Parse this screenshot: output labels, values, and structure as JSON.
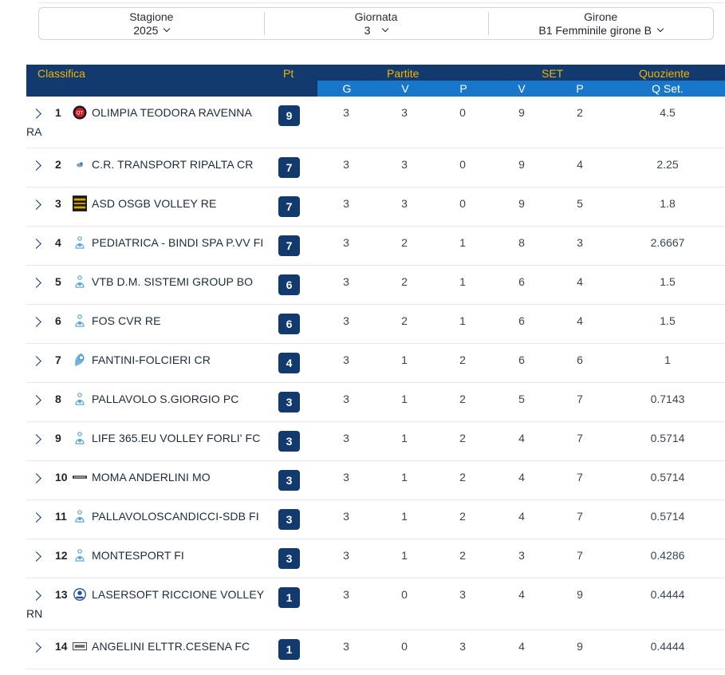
{
  "filters": {
    "season": {
      "label": "Stagione",
      "value": "2025"
    },
    "matchday": {
      "label": "Giornata",
      "value": "3"
    },
    "group": {
      "label": "Girone",
      "value": "B1 Femminile girone B"
    }
  },
  "table": {
    "headers": {
      "classifica": "Classifica",
      "pt": "Pt",
      "partite": "Partite",
      "set": "SET",
      "quoziente": "Quoziente"
    },
    "subheaders": {
      "g": "G",
      "pv": "V",
      "pp": "P",
      "sv": "V",
      "sp": "P",
      "qset": "Q Set."
    },
    "rows": [
      {
        "pos": "1",
        "team": "OLIMPIA TEODORA RAVENNA",
        "team_cont": "RA",
        "pt": "9",
        "g": "3",
        "v": "3",
        "p": "0",
        "sv": "9",
        "sp": "2",
        "q": "4.5",
        "logo": "olimpia-teodora-logo"
      },
      {
        "pos": "2",
        "team": "C.R. TRANSPORT RIPALTA CR",
        "pt": "7",
        "g": "3",
        "v": "3",
        "p": "0",
        "sv": "9",
        "sp": "4",
        "q": "2.25",
        "logo": "ripalta-logo"
      },
      {
        "pos": "3",
        "team": "ASD OSGB VOLLEY RE",
        "pt": "7",
        "g": "3",
        "v": "3",
        "p": "0",
        "sv": "9",
        "sp": "5",
        "q": "1.8",
        "logo": "osgb-logo"
      },
      {
        "pos": "4",
        "team": "PEDIATRICA - BINDI SPA P.VV FI",
        "pt": "7",
        "g": "3",
        "v": "2",
        "p": "1",
        "sv": "8",
        "sp": "3",
        "q": "2.6667",
        "logo": "default-team-logo"
      },
      {
        "pos": "5",
        "team": "VTB D.M. SISTEMI GROUP BO",
        "pt": "6",
        "g": "3",
        "v": "2",
        "p": "1",
        "sv": "6",
        "sp": "4",
        "q": "1.5",
        "logo": "default-team-logo"
      },
      {
        "pos": "6",
        "team": "FOS CVR RE",
        "pt": "6",
        "g": "3",
        "v": "2",
        "p": "1",
        "sv": "6",
        "sp": "4",
        "q": "1.5",
        "logo": "default-team-logo"
      },
      {
        "pos": "7",
        "team": "FANTINI-FOLCIERI CR",
        "pt": "4",
        "g": "3",
        "v": "1",
        "p": "2",
        "sv": "6",
        "sp": "6",
        "q": "1",
        "logo": "fantini-folcieri-logo"
      },
      {
        "pos": "8",
        "team": "PALLAVOLO S.GIORGIO PC",
        "pt": "3",
        "g": "3",
        "v": "1",
        "p": "2",
        "sv": "5",
        "sp": "7",
        "q": "0.7143",
        "logo": "default-team-logo"
      },
      {
        "pos": "9",
        "team": "LIFE 365.EU VOLLEY FORLI' FC",
        "pt": "3",
        "g": "3",
        "v": "1",
        "p": "2",
        "sv": "4",
        "sp": "7",
        "q": "0.5714",
        "logo": "default-team-logo"
      },
      {
        "pos": "10",
        "team": "MOMA ANDERLINI MO",
        "pt": "3",
        "g": "3",
        "v": "1",
        "p": "2",
        "sv": "4",
        "sp": "7",
        "q": "0.5714",
        "logo": "anderlini-logo"
      },
      {
        "pos": "11",
        "team": "PALLAVOLOSCANDICCI-SDB FI",
        "pt": "3",
        "g": "3",
        "v": "1",
        "p": "2",
        "sv": "4",
        "sp": "7",
        "q": "0.5714",
        "logo": "default-team-logo"
      },
      {
        "pos": "12",
        "team": "MONTESPORT FI",
        "pt": "3",
        "g": "3",
        "v": "1",
        "p": "2",
        "sv": "3",
        "sp": "7",
        "q": "0.4286",
        "logo": "default-team-logo"
      },
      {
        "pos": "13",
        "team": "LASERSOFT RICCIONE VOLLEY",
        "team_cont": "RN",
        "pt": "1",
        "g": "3",
        "v": "0",
        "p": "3",
        "sv": "4",
        "sp": "9",
        "q": "0.4444",
        "logo": "riccione-logo"
      },
      {
        "pos": "14",
        "team": "ANGELINI ELTTR.CESENA FC",
        "pt": "1",
        "g": "3",
        "v": "0",
        "p": "3",
        "sv": "4",
        "sp": "9",
        "q": "0.4444",
        "logo": "angelini-logo"
      }
    ]
  },
  "colors": {
    "header_bg": "#123a6e",
    "header_text": "#f2b400",
    "subheader_bg": "#1977c9",
    "points_badge": "#123a6e"
  }
}
